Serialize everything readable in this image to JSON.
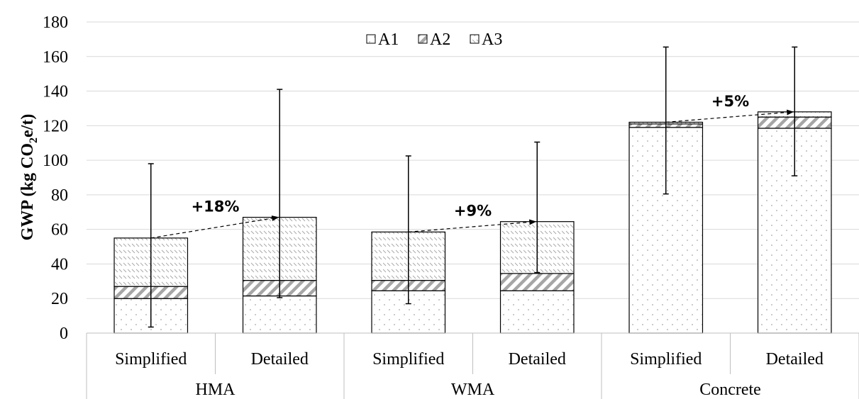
{
  "chart_data": {
    "type": "bar",
    "stacked": true,
    "ylabel_main": "GWP (kg CO",
    "ylabel_sub": "2",
    "ylabel_tail": "e/t)",
    "xlabel": "",
    "ylim": [
      0,
      180
    ],
    "yticks": [
      "0",
      "20",
      "40",
      "60",
      "80",
      "100",
      "120",
      "140",
      "160",
      "180"
    ],
    "grid": "horizontal",
    "legend_position": "top-center",
    "legend": [
      "A1",
      "A2",
      "A3"
    ],
    "groups": [
      "HMA",
      "WMA",
      "Concrete"
    ],
    "categories": [
      "Simplified",
      "Detailed",
      "Simplified",
      "Detailed",
      "Simplified",
      "Detailed"
    ],
    "series": [
      {
        "name": "A1",
        "values": [
          20,
          21.5,
          24.5,
          24.5,
          119,
          118.5
        ]
      },
      {
        "name": "A2",
        "values": [
          7,
          9,
          6,
          10,
          2,
          6.5
        ]
      },
      {
        "name": "A3",
        "values": [
          28,
          36.5,
          28,
          30,
          1,
          3
        ]
      }
    ],
    "error_bars": [
      {
        "low": 3.5,
        "high": 98
      },
      {
        "low": 20.5,
        "high": 141
      },
      {
        "low": 17,
        "high": 102.5
      },
      {
        "low": 35,
        "high": 110.5
      },
      {
        "low": 80.5,
        "high": 165.5
      },
      {
        "low": 91,
        "high": 165.5
      }
    ],
    "annotations": [
      {
        "text": "+18%",
        "from_bar": 0,
        "to_bar": 1
      },
      {
        "text": "+9%",
        "from_bar": 2,
        "to_bar": 3
      },
      {
        "text": "+5%",
        "from_bar": 4,
        "to_bar": 5
      }
    ],
    "colors": {
      "bar_fill": "#ffffff",
      "stroke": "#000000",
      "grid": "#d9d9d9",
      "pattern": "#8c8c8c"
    }
  }
}
